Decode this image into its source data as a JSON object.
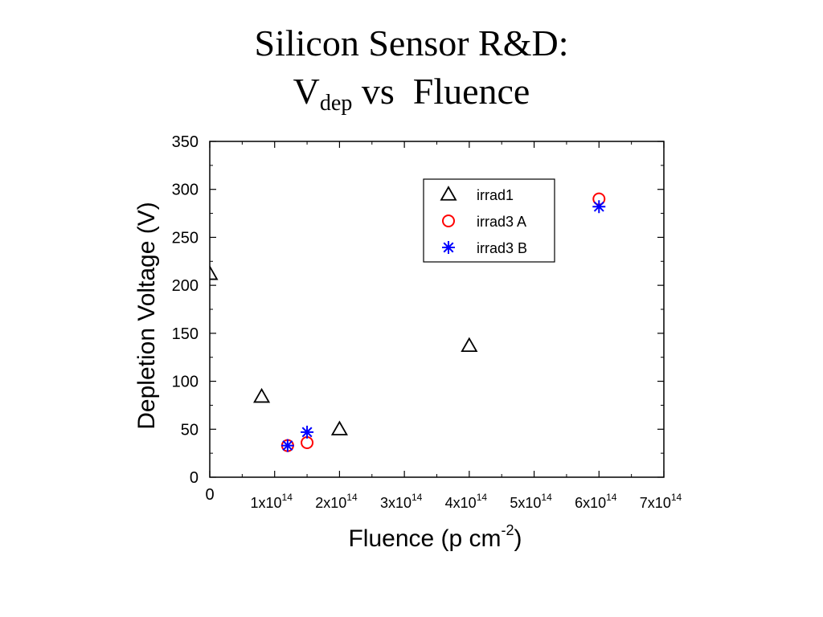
{
  "slide": {
    "title_line1": "Silicon Sensor R&D:",
    "title_v": "V",
    "title_sub": "dep",
    "title_rest": " vs  Fluence"
  },
  "chart_data": {
    "type": "scatter",
    "xlabel": "Fluence (p cm-2)",
    "xlabel_main": "Fluence (p cm",
    "xlabel_sup": "-2",
    "xlabel_close": ")",
    "ylabel": "Depletion Voltage (V)",
    "xlim": [
      0,
      700000000000000.0
    ],
    "ylim": [
      0,
      350
    ],
    "x_ticks": [
      {
        "value": 0,
        "base": "0",
        "exp": ""
      },
      {
        "value": 100000000000000.0,
        "base": "1x10",
        "exp": "14"
      },
      {
        "value": 200000000000000.0,
        "base": "2x10",
        "exp": "14"
      },
      {
        "value": 300000000000000.0,
        "base": "3x10",
        "exp": "14"
      },
      {
        "value": 400000000000000.0,
        "base": "4x10",
        "exp": "14"
      },
      {
        "value": 500000000000000.0,
        "base": "5x10",
        "exp": "14"
      },
      {
        "value": 600000000000000.0,
        "base": "6x10",
        "exp": "14"
      },
      {
        "value": 700000000000000.0,
        "base": "7x10",
        "exp": "14"
      }
    ],
    "y_ticks": [
      "0",
      "50",
      "100",
      "150",
      "200",
      "250",
      "300",
      "350"
    ],
    "grid": false,
    "legend_position": "top-right",
    "series": [
      {
        "name": "irrad1",
        "marker": "triangle",
        "color": "#000000",
        "points": [
          [
            0,
            212
          ],
          [
            80000000000000.0,
            84
          ],
          [
            200000000000000.0,
            50
          ],
          [
            400000000000000.0,
            137
          ]
        ]
      },
      {
        "name": "irrad3 A",
        "marker": "circle",
        "color": "#ff0000",
        "points": [
          [
            120000000000000.0,
            33
          ],
          [
            150000000000000.0,
            36
          ],
          [
            600000000000000.0,
            290
          ]
        ]
      },
      {
        "name": "irrad3 B",
        "marker": "asterisk",
        "color": "#0000ff",
        "points": [
          [
            120000000000000.0,
            33
          ],
          [
            150000000000000.0,
            47
          ],
          [
            600000000000000.0,
            282
          ]
        ]
      }
    ]
  }
}
